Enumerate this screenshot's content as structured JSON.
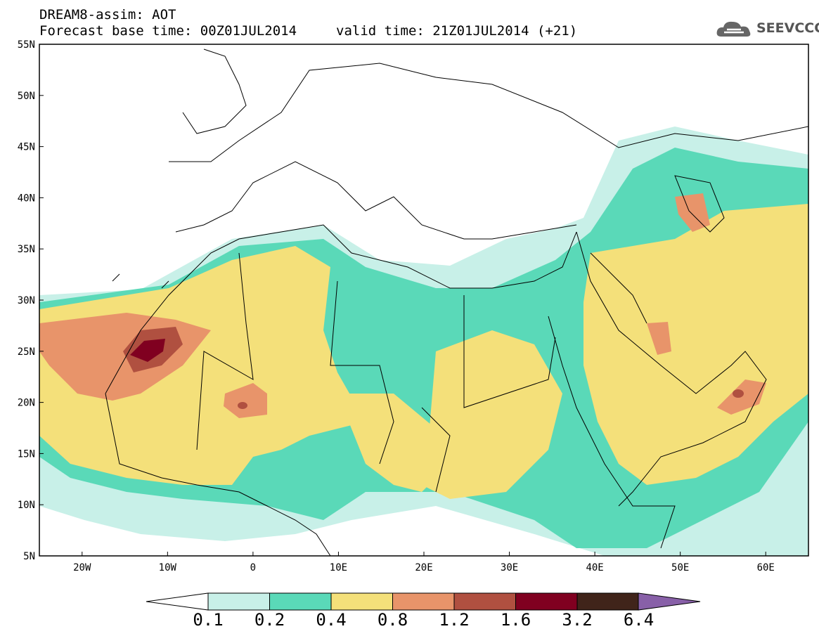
{
  "title": {
    "line1": "DREAM8-assim: AOT",
    "line2": "Forecast base time: 00Z01JUL2014",
    "valid": "valid time: 21Z01JUL2014 (+21)"
  },
  "logo": {
    "text": "SEEVCCC",
    "icon": "cloud-icon"
  },
  "axes": {
    "lat_labels": [
      "55N",
      "50N",
      "45N",
      "40N",
      "35N",
      "30N",
      "25N",
      "20N",
      "15N",
      "10N",
      "5N"
    ],
    "lon_labels": [
      "20W",
      "10W",
      "0",
      "10E",
      "20E",
      "30E",
      "40E",
      "50E",
      "60E"
    ],
    "lon_range": [
      -25,
      65
    ],
    "lat_range": [
      5,
      55
    ]
  },
  "colorbar": {
    "labels": [
      "0.1",
      "0.2",
      "0.4",
      "0.8",
      "1.2",
      "1.6",
      "3.2",
      "6.4"
    ],
    "colors": [
      "#c8f0e8",
      "#5ad9b8",
      "#f4e07a",
      "#e8946a",
      "#b05040",
      "#800020",
      "#40241a",
      "#8860a8"
    ]
  }
}
